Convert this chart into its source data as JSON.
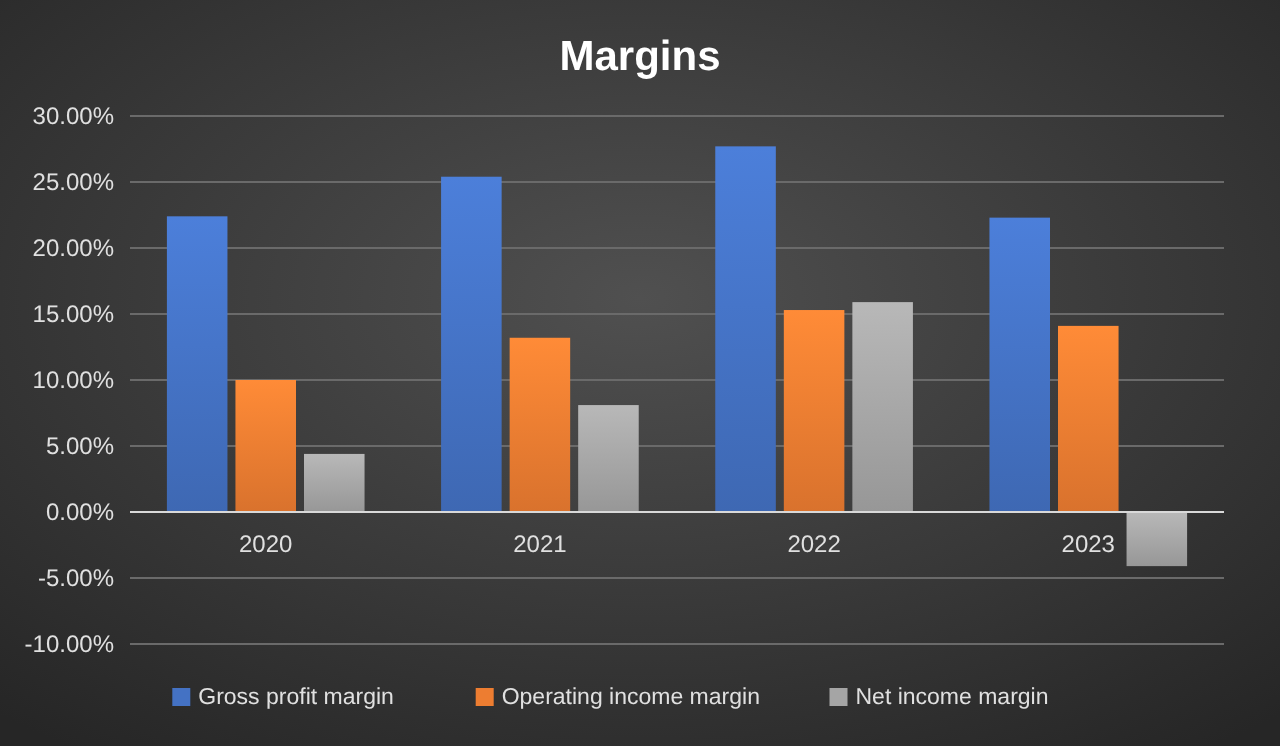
{
  "chart_data": {
    "type": "bar",
    "title": "Margins",
    "categories": [
      "2020",
      "2021",
      "2022",
      "2023"
    ],
    "series": [
      {
        "name": "Gross profit margin",
        "color": "#4472c4",
        "values": [
          22.4,
          25.4,
          27.7,
          22.3
        ]
      },
      {
        "name": "Operating income margin",
        "color": "#ed7d31",
        "values": [
          10.0,
          13.2,
          15.3,
          14.1
        ]
      },
      {
        "name": "Net income margin",
        "color": "#a5a5a5",
        "values": [
          4.4,
          8.1,
          15.9,
          -4.1
        ]
      }
    ],
    "ylim": [
      -10,
      30
    ],
    "yticks": [
      {
        "value": -10,
        "label": "-10.00%"
      },
      {
        "value": -5,
        "label": "-5.00%"
      },
      {
        "value": 0,
        "label": "0.00%"
      },
      {
        "value": 5,
        "label": "5.00%"
      },
      {
        "value": 10,
        "label": "10.00%"
      },
      {
        "value": 15,
        "label": "15.00%"
      },
      {
        "value": 20,
        "label": "20.00%"
      },
      {
        "value": 25,
        "label": "25.00%"
      },
      {
        "value": 30,
        "label": "30.00%"
      }
    ],
    "grid": "y",
    "legend": "bottom"
  }
}
